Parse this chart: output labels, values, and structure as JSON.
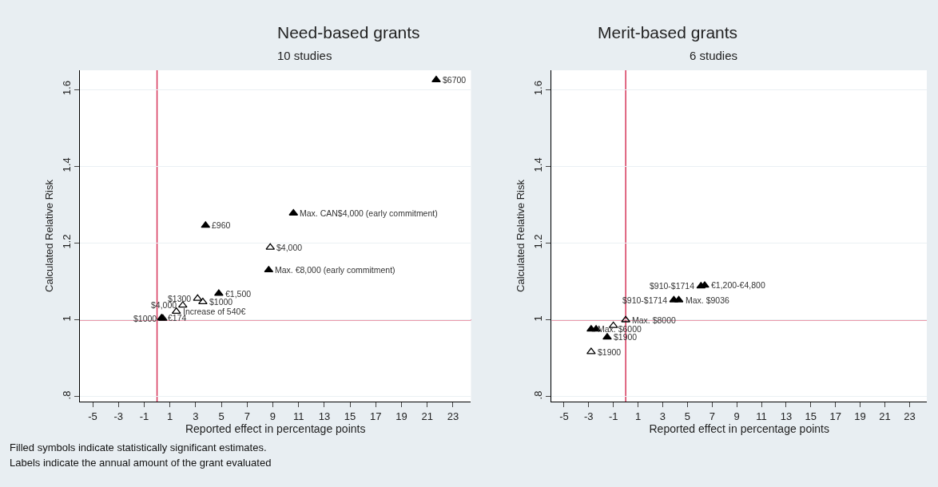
{
  "chart_data": [
    {
      "type": "scatter",
      "title": "Need-based grants",
      "subtitle": "10 studies",
      "xlabel": "Reported effect in percentage points",
      "ylabel": "Calculated Relative Risk",
      "xlim": [
        -6,
        24.4
      ],
      "xticks": [
        -5,
        -3,
        -1,
        1,
        3,
        5,
        7,
        9,
        11,
        13,
        15,
        17,
        19,
        21,
        23
      ],
      "ylim": [
        0.7875,
        1.65
      ],
      "yticks": [
        {
          "value": 0.8,
          "label": ".8"
        },
        1,
        1.2,
        1.4,
        1.6
      ],
      "grid": "y",
      "ref_lines": [
        {
          "axis": "x",
          "value": 0,
          "color": "#d7365b"
        },
        {
          "axis": "y",
          "value": 1,
          "color": "#d7365b"
        }
      ],
      "series": [
        {
          "color": "#000000",
          "marker": "triangle",
          "x": [
            21.7,
            10.6,
            3.77,
            8.68,
            4.8,
            0.35
          ],
          "values": [
            1.625,
            1.278,
            1.246,
            1.13,
            1.069,
            1.005
          ]
        },
        {
          "color": "#000000",
          "marker": "triangle-open",
          "x": [
            8.8,
            3.15,
            3.56,
            2.0,
            1.5,
            0.45
          ],
          "values": [
            1.189,
            1.056,
            1.047,
            1.038,
            1.022,
            1.004
          ]
        }
      ],
      "annotations": [
        {
          "text": "$6700",
          "x": 21.7,
          "y": 1.625
        },
        {
          "text": "Max. CAN$4,000 (early commitment)",
          "x": 10.6,
          "y": 1.278
        },
        {
          "text": "£960",
          "x": 3.77,
          "y": 1.246
        },
        {
          "text": "Max. €8,000 (early commitment)",
          "x": 8.68,
          "y": 1.13
        },
        {
          "text": "€1,500",
          "x": 4.8,
          "y": 1.069
        },
        {
          "text": "€174",
          "x": 0.35,
          "y": 1.005
        },
        {
          "text": "$4,000",
          "x": 8.8,
          "y": 1.189
        },
        {
          "text": "$1300",
          "x": 3.15,
          "y": 1.056
        },
        {
          "text": "$1000",
          "x": 3.56,
          "y": 1.047
        },
        {
          "text": "$4,000",
          "x": 2.0,
          "y": 1.038
        },
        {
          "text": "Increase of 540€",
          "x": 1.5,
          "y": 1.022
        },
        {
          "text": "$1000",
          "x": 0.45,
          "y": 1.004
        },
        "Filled symbols indicate statistically significant estimates.",
        "Labels indicate the annual amount of the grant evaluated"
      ]
    },
    {
      "type": "scatter",
      "title": "Merit-based grants",
      "subtitle": "6 studies",
      "xlabel": "Reported effect in percentage points",
      "ylabel": "Calculated Relative Risk",
      "xlim": [
        -6,
        24.4
      ],
      "xticks": [
        -5,
        -3,
        -1,
        1,
        3,
        5,
        7,
        9,
        11,
        13,
        15,
        17,
        19,
        21,
        23
      ],
      "ylim": [
        0.7875,
        1.65
      ],
      "yticks": [
        {
          "value": 0.8,
          "label": ".8"
        },
        1,
        1.2,
        1.4,
        1.6
      ],
      "grid": "y",
      "ref_lines": [
        {
          "axis": "x",
          "value": 0,
          "color": "#d7365b"
        },
        {
          "axis": "y",
          "value": 1,
          "color": "#d7365b"
        }
      ],
      "series": [
        {
          "color": "#000000",
          "marker": "triangle",
          "x": [
            6.4,
            6.1,
            4.3,
            3.9,
            -2.8,
            -2.4,
            -1.5
          ],
          "values": [
            1.09,
            1.088,
            1.052,
            1.052,
            0.976,
            0.976,
            0.955
          ]
        },
        {
          "color": "#000000",
          "marker": "triangle-open",
          "x": [
            0,
            -1.0,
            -2.8
          ],
          "values": [
            1.0,
            0.985,
            0.917
          ]
        }
      ],
      "annotations": [
        {
          "text": "€1,200-€4,800",
          "x": 6.4,
          "y": 1.09
        },
        {
          "text": "$910-$1714",
          "x": 6.1,
          "y": 1.088
        },
        {
          "text": "Max. $9036",
          "x": 4.3,
          "y": 1.052
        },
        {
          "text": "$910-$1714",
          "x": 3.9,
          "y": 1.052
        },
        {
          "text": "Max. $6000",
          "x": -2.8,
          "y": 0.976
        },
        {
          "text": "$1900",
          "x": -1.5,
          "y": 0.955
        },
        {
          "text": "Max. $8000",
          "x": 0,
          "y": 1.0
        },
        {
          "text": "$1900",
          "x": -2.8,
          "y": 0.917
        }
      ]
    }
  ]
}
